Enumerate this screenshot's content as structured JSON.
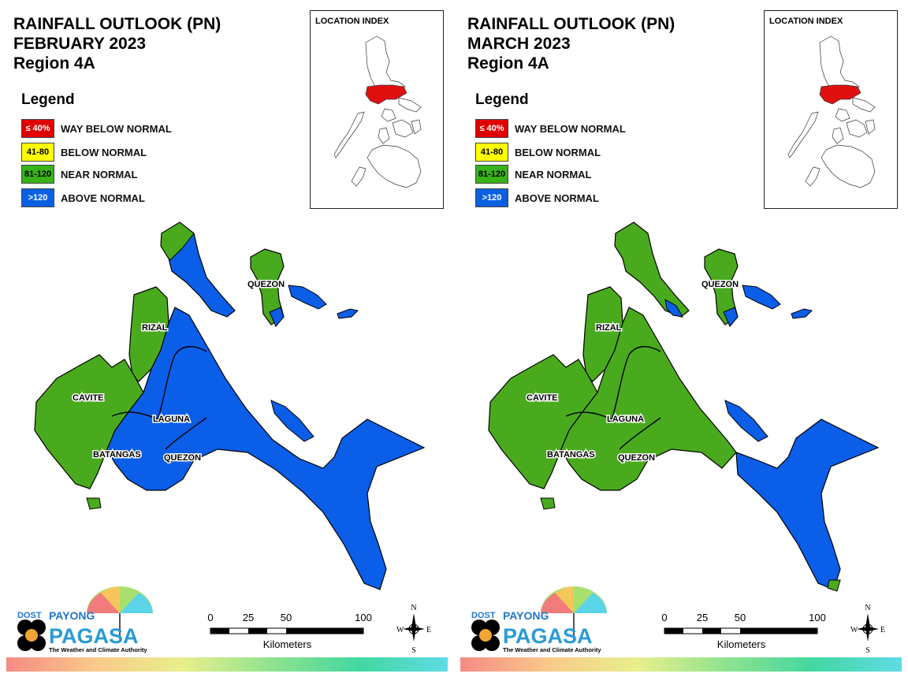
{
  "panels": [
    {
      "title_line1": "RAINFALL OUTLOOK (PN)",
      "title_line2": "FEBRUARY 2023",
      "title_line3": "Region 4A",
      "location_index": "LOCATION INDEX",
      "zones": {
        "west": "near-normal",
        "middle": "above-normal",
        "east": "above-normal",
        "south": "above-normal",
        "island": "near-normal"
      }
    },
    {
      "title_line1": "RAINFALL OUTLOOK (PN)",
      "title_line2": "MARCH 2023",
      "title_line3": "Region 4A",
      "location_index": "LOCATION INDEX",
      "zones": {
        "west": "near-normal",
        "middle": "near-normal",
        "east": "near-normal",
        "south": "above-normal",
        "island": "near-normal"
      }
    }
  ],
  "legend": {
    "title": "Legend",
    "items": [
      {
        "range": "≤ 40%",
        "label": "WAY BELOW NORMAL",
        "color": "#e00000",
        "text_color": "#ffffff"
      },
      {
        "range": "41-80",
        "label": "BELOW NORMAL",
        "color": "#ffff00",
        "text_color": "#000000"
      },
      {
        "range": "81-120",
        "label": "NEAR NORMAL",
        "color": "#38b21a",
        "text_color": "#000000"
      },
      {
        "range": ">120",
        "label": "ABOVE NORMAL",
        "color": "#0a60e0",
        "text_color": "#ffffff"
      }
    ]
  },
  "categories": {
    "near-normal": "#4aaa1e",
    "above-normal": "#0a5ee8",
    "highlight": "#e01010"
  },
  "provinces": [
    "QUEZON",
    "RIZAL",
    "CAVITE",
    "LAGUNA",
    "BATANGAS",
    "QUEZON"
  ],
  "scale": {
    "ticks": [
      "0",
      "25",
      "50",
      "100"
    ],
    "unit": "Kilometers"
  },
  "compass": {
    "n": "N",
    "s": "S",
    "e": "E",
    "w": "W"
  },
  "logo": {
    "dost": "DOST",
    "payong": "PAYONG",
    "pagasa": "PAGASA",
    "tagline": "The Weather and Climate Authority"
  }
}
